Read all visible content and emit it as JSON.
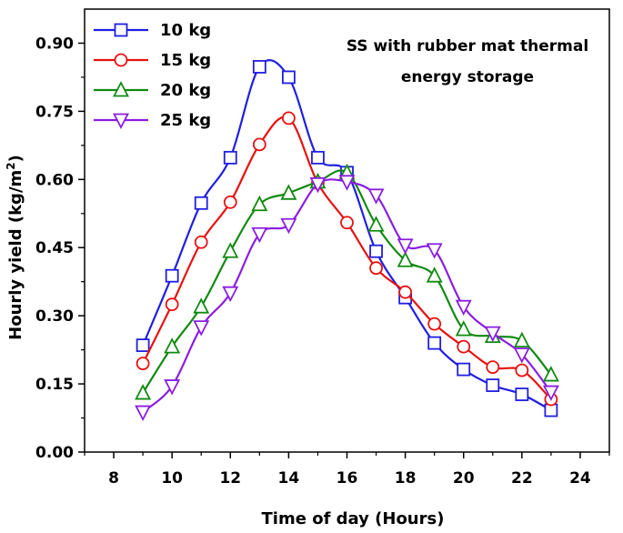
{
  "chart_data": {
    "type": "line",
    "title": "",
    "xlabel": "Time of day (Hours)",
    "ylabel": "Hourly yield (kg/m",
    "ylabel_sup": "2",
    "ylabel_end": ")",
    "xlim": [
      7,
      25
    ],
    "ylim": [
      0,
      0.975
    ],
    "xticks": [
      8,
      10,
      12,
      14,
      16,
      18,
      20,
      22,
      24
    ],
    "yticks": [
      0.0,
      0.15,
      0.3,
      0.45,
      0.6,
      0.75,
      0.9
    ],
    "xtick_labels": [
      "8",
      "10",
      "12",
      "14",
      "16",
      "18",
      "20",
      "22",
      "24"
    ],
    "ytick_labels": [
      "0.00",
      "0.15",
      "0.30",
      "0.45",
      "0.60",
      "0.75",
      "0.90"
    ],
    "grid": false,
    "legend_position": "top-left",
    "annotation": [
      "SS with rubber mat thermal",
      "energy storage"
    ],
    "x": [
      9,
      10,
      11,
      12,
      13,
      14,
      15,
      16,
      17,
      18,
      19,
      20,
      21,
      22,
      23
    ],
    "series": [
      {
        "name": "10 kg",
        "marker": "square",
        "color": "#1f1fe0",
        "values": [
          0.235,
          0.388,
          0.548,
          0.648,
          0.848,
          0.825,
          0.648,
          0.615,
          0.442,
          0.34,
          0.24,
          0.182,
          0.147,
          0.127,
          0.092
        ]
      },
      {
        "name": "15 kg",
        "marker": "circle",
        "color": "#e81010",
        "values": [
          0.195,
          0.325,
          0.462,
          0.55,
          0.677,
          0.735,
          0.592,
          0.505,
          0.405,
          0.352,
          0.282,
          0.232,
          0.187,
          0.18,
          0.116
        ]
      },
      {
        "name": "20 kg",
        "marker": "triangle-up",
        "color": "#118a11",
        "values": [
          0.13,
          0.232,
          0.32,
          0.442,
          0.545,
          0.57,
          0.595,
          0.615,
          0.5,
          0.422,
          0.388,
          0.27,
          0.255,
          0.245,
          0.17
        ]
      },
      {
        "name": "25 kg",
        "marker": "triangle-down",
        "color": "#8a1ee0",
        "values": [
          0.088,
          0.145,
          0.275,
          0.35,
          0.48,
          0.5,
          0.59,
          0.595,
          0.565,
          0.455,
          0.445,
          0.32,
          0.262,
          0.215,
          0.132
        ]
      }
    ]
  }
}
